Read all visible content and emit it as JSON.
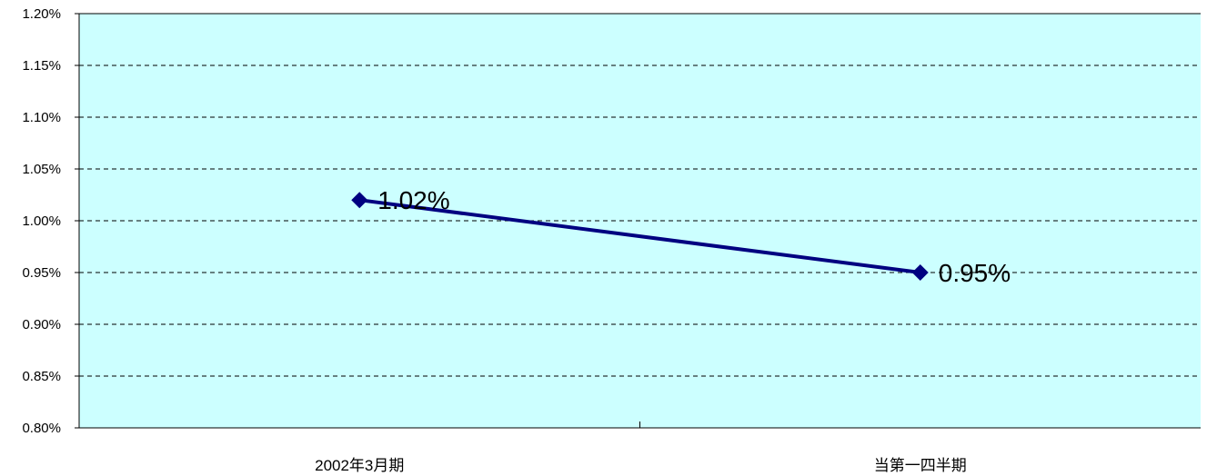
{
  "chart_data": {
    "type": "line",
    "categories": [
      "2002年3月期",
      "当第一四半期"
    ],
    "series": [
      {
        "values": [
          1.02,
          0.95
        ]
      }
    ],
    "data_labels": [
      "1.02%",
      "0.95%"
    ],
    "ylim": [
      0.8,
      1.2
    ],
    "yticks": [
      0.8,
      0.85,
      0.9,
      0.95,
      1.0,
      1.05,
      1.1,
      1.15,
      1.2
    ],
    "ytick_labels": [
      "0.80%",
      "0.85%",
      "0.90%",
      "0.95%",
      "1.00%",
      "1.05%",
      "1.10%",
      "1.15%",
      "1.20%"
    ],
    "grid": true,
    "title": "",
    "xlabel": "",
    "ylabel": "",
    "colors": {
      "plot_background": "#ccffff",
      "line": "#000080",
      "grid": "#000000"
    }
  }
}
